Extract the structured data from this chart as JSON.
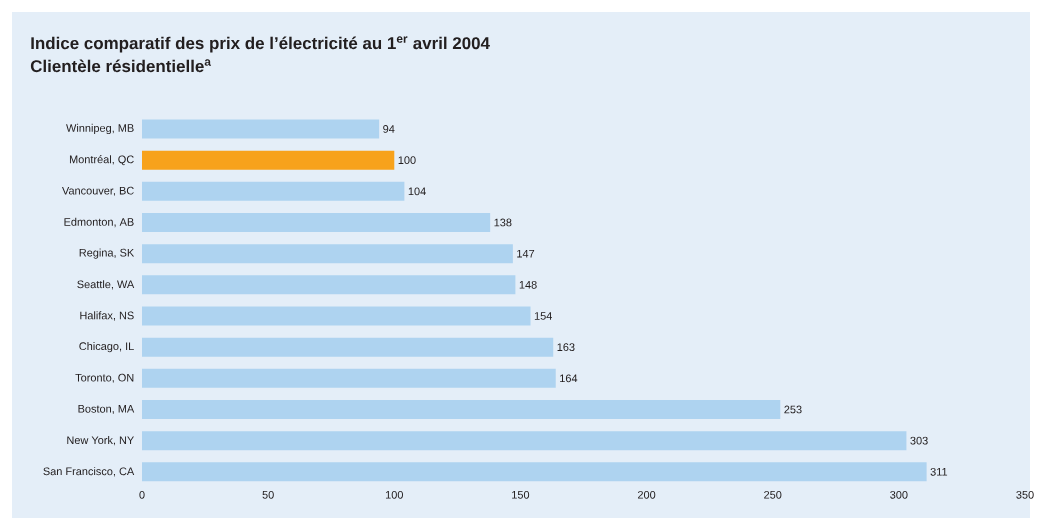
{
  "chart_data": {
    "type": "bar",
    "orientation": "horizontal",
    "title": "Indice comparatif des prix de l’électricité au 1$^{er}$ avril 2004",
    "subtitle": "Clientèle résidentielle$^{a}$",
    "categories": [
      "Winnipeg, MB",
      "Montréal, QC",
      "Vancouver, BC",
      "Edmonton, AB",
      "Regina, SK",
      "Seattle, WA",
      "Halifax, NS",
      "Chicago, IL",
      "Toronto, ON",
      "Boston, MA",
      "New York, NY",
      "San Francisco, CA"
    ],
    "values": [
      94,
      100,
      104,
      138,
      147,
      148,
      154,
      163,
      164,
      253,
      303,
      311
    ],
    "colors": [
      "#aed3f0",
      "#f7a21b",
      "#aed3f0",
      "#aed3f0",
      "#aed3f0",
      "#aed3f0",
      "#aed3f0",
      "#aed3f0",
      "#aed3f0",
      "#aed3f0",
      "#aed3f0",
      "#aed3f0"
    ],
    "data_labels": true,
    "xlim": [
      0,
      350
    ],
    "xticks": [
      0,
      50,
      100,
      150,
      200,
      250,
      300,
      350
    ],
    "grid": false
  }
}
